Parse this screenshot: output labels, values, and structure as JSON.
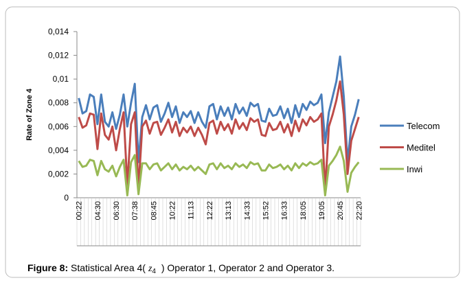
{
  "chart_data": {
    "type": "line",
    "y_axis_label": "Rate of Zone 4",
    "categories": [
      "00:22",
      null,
      null,
      null,
      null,
      "04:30",
      null,
      null,
      null,
      null,
      "06:30",
      null,
      null,
      null,
      null,
      "07:38",
      null,
      null,
      null,
      null,
      "08:45",
      null,
      null,
      null,
      null,
      "10:22",
      null,
      null,
      null,
      null,
      "11:13",
      null,
      null,
      null,
      null,
      "12:22",
      null,
      null,
      null,
      null,
      "13:13",
      null,
      null,
      null,
      null,
      "14:33",
      null,
      null,
      null,
      null,
      "15:52",
      null,
      null,
      null,
      null,
      "16:33",
      null,
      null,
      null,
      null,
      "18:05",
      null,
      null,
      null,
      null,
      "19:05",
      null,
      null,
      null,
      null,
      "20:45",
      null,
      null,
      null,
      null,
      "22:20"
    ],
    "series": [
      {
        "name": "Telecom",
        "color": "#4a7ebb",
        "values": [
          0.0084,
          0.0071,
          0.0073,
          0.0087,
          0.0085,
          0.0062,
          0.0087,
          0.0064,
          0.006,
          0.0072,
          0.0058,
          0.007,
          0.0087,
          0.006,
          0.008,
          0.0096,
          0.003,
          0.0068,
          0.0078,
          0.0066,
          0.0076,
          0.0078,
          0.0064,
          0.0071,
          0.008,
          0.0068,
          0.0077,
          0.0063,
          0.0072,
          0.0068,
          0.0073,
          0.0063,
          0.0072,
          0.0064,
          0.0059,
          0.0077,
          0.0079,
          0.0066,
          0.0077,
          0.0069,
          0.0076,
          0.0066,
          0.0079,
          0.0071,
          0.0076,
          0.0069,
          0.008,
          0.0077,
          0.0079,
          0.0065,
          0.0064,
          0.0075,
          0.0069,
          0.007,
          0.0077,
          0.0067,
          0.0075,
          0.0063,
          0.0078,
          0.0068,
          0.0079,
          0.0074,
          0.0081,
          0.0078,
          0.008,
          0.0087,
          0.0046,
          0.0072,
          0.0085,
          0.0098,
          0.0119,
          0.0085,
          0.003,
          0.006,
          0.007,
          0.0083
        ]
      },
      {
        "name": "Meditel",
        "color": "#be4b48",
        "values": [
          0.0068,
          0.0059,
          0.0061,
          0.0071,
          0.007,
          0.0041,
          0.0071,
          0.0053,
          0.0049,
          0.006,
          0.004,
          0.0058,
          0.0072,
          0.001,
          0.0062,
          0.0072,
          0.0008,
          0.006,
          0.0065,
          0.0054,
          0.0063,
          0.0064,
          0.0053,
          0.0059,
          0.0066,
          0.0055,
          0.0064,
          0.0052,
          0.0059,
          0.0055,
          0.006,
          0.0052,
          0.0059,
          0.0053,
          0.0045,
          0.0063,
          0.0065,
          0.0054,
          0.0064,
          0.0057,
          0.0062,
          0.0054,
          0.0066,
          0.0058,
          0.0063,
          0.0057,
          0.0067,
          0.0064,
          0.0066,
          0.0053,
          0.0052,
          0.0063,
          0.0057,
          0.0058,
          0.0064,
          0.0055,
          0.0062,
          0.0052,
          0.0065,
          0.0056,
          0.0066,
          0.0061,
          0.0068,
          0.0064,
          0.0066,
          0.0071,
          0.0006,
          0.006,
          0.007,
          0.0082,
          0.0098,
          0.007,
          0.002,
          0.0048,
          0.0058,
          0.0068
        ]
      },
      {
        "name": "Inwi",
        "color": "#98b954",
        "values": [
          0.0031,
          0.0026,
          0.0027,
          0.0032,
          0.0031,
          0.0019,
          0.0031,
          0.0024,
          0.0022,
          0.0027,
          0.0018,
          0.0026,
          0.0032,
          0.0002,
          0.003,
          0.0036,
          0.0003,
          0.0029,
          0.0029,
          0.0024,
          0.0028,
          0.0029,
          0.0023,
          0.0026,
          0.0029,
          0.0024,
          0.0028,
          0.0023,
          0.0026,
          0.0024,
          0.0027,
          0.0023,
          0.0026,
          0.0023,
          0.002,
          0.0028,
          0.0029,
          0.0024,
          0.0029,
          0.0025,
          0.0027,
          0.0024,
          0.0029,
          0.0026,
          0.0028,
          0.0025,
          0.003,
          0.0028,
          0.0029,
          0.0023,
          0.0023,
          0.0028,
          0.0025,
          0.0026,
          0.0028,
          0.0024,
          0.0027,
          0.0023,
          0.0029,
          0.0025,
          0.0029,
          0.0027,
          0.003,
          0.0028,
          0.0029,
          0.0032,
          0.0002,
          0.0027,
          0.0031,
          0.0036,
          0.0043,
          0.0031,
          0.0005,
          0.0021,
          0.0026,
          0.003
        ]
      }
    ],
    "ylim": [
      0,
      0.014
    ],
    "yticks": [
      0,
      {
        "value": 0.002,
        "label": "0,002"
      },
      {
        "value": 0.004,
        "label": "0,004"
      },
      {
        "value": 0.006,
        "label": "0,006"
      },
      {
        "value": 0.008,
        "label": "0,008"
      },
      {
        "value": 0.01,
        "label": "0,01"
      },
      {
        "value": 0.012,
        "label": "0,012"
      },
      {
        "value": 0.014,
        "label": "0,014"
      }
    ],
    "grid": false,
    "legend": "right"
  },
  "caption": {
    "label": "Figure 8:",
    "text_before": " Statistical Area 4(",
    "symbol": "z",
    "subscript": "4",
    "text_after": " ) Operator 1, Operator 2 and Operator 3."
  }
}
